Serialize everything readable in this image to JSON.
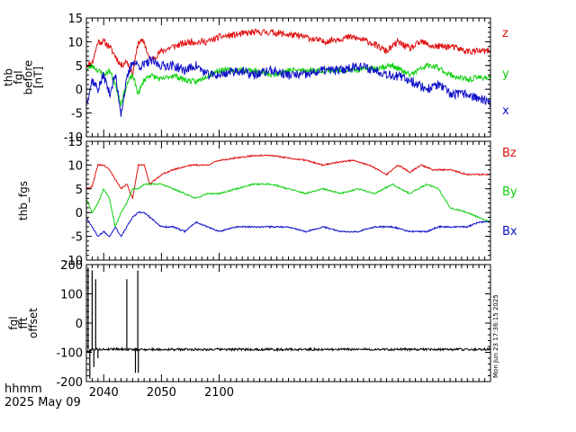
{
  "footer": {
    "time_format_label": "hhmm",
    "date_label": "2025 May 09",
    "stamp": "Mon Jun 23 17:36:15 2025"
  },
  "x_axis": {
    "range": [
      "20:37",
      "21:47"
    ],
    "ticks": [
      {
        "label": "2040",
        "value": "20:40"
      },
      {
        "label": "2050",
        "value": "20:50"
      },
      {
        "label": "2100",
        "value": "21:00"
      }
    ],
    "minor_tick_interval_minutes": 1
  },
  "colors": {
    "red": "#e01010",
    "green": "#10d010",
    "blue": "#1010c8",
    "black": "#000000",
    "background": "#ffffff"
  },
  "chart_data": [
    {
      "type": "line",
      "ylabel": [
        "thb",
        "fgl",
        "before",
        "[nT]"
      ],
      "ylim": [
        -10,
        15
      ],
      "yticks": [
        -10,
        -5,
        0,
        5,
        10,
        15
      ],
      "x_unit": "time (UT)",
      "series": [
        {
          "name": "z",
          "color": "red",
          "noise": 0.7,
          "seed": 11,
          "x": [
            "20:37",
            "20:38",
            "20:39",
            "20:40",
            "20:41",
            "20:42",
            "20:43",
            "20:44",
            "20:45",
            "20:46",
            "20:47",
            "20:48",
            "20:49",
            "20:50",
            "20:52",
            "20:55",
            "20:58",
            "21:00",
            "21:03",
            "21:06",
            "21:09",
            "21:12",
            "21:15",
            "21:18",
            "21:20",
            "21:23",
            "21:26",
            "21:29",
            "21:31",
            "21:33",
            "21:35",
            "21:37",
            "21:40",
            "21:43",
            "21:45",
            "21:47"
          ],
          "y": [
            5,
            5.5,
            10,
            10,
            9,
            7,
            5,
            6,
            3,
            10,
            10,
            6,
            7,
            8,
            9,
            10,
            10,
            11,
            11.5,
            12,
            12,
            11.5,
            11,
            10,
            10.5,
            11,
            10,
            8,
            10,
            8.5,
            10,
            9,
            9,
            8,
            8,
            8
          ]
        },
        {
          "name": "y",
          "color": "green",
          "noise": 0.6,
          "seed": 23,
          "x": [
            "20:37",
            "20:38",
            "20:39",
            "20:40",
            "20:41",
            "20:42",
            "20:43",
            "20:44",
            "20:45",
            "20:46",
            "20:47",
            "20:48",
            "20:50",
            "20:52",
            "20:54",
            "20:56",
            "20:58",
            "21:00",
            "21:03",
            "21:06",
            "21:09",
            "21:12",
            "21:15",
            "21:18",
            "21:21",
            "21:24",
            "21:27",
            "21:30",
            "21:33",
            "21:36",
            "21:38",
            "21:40",
            "21:43",
            "21:45",
            "21:47"
          ],
          "y": [
            4,
            5,
            4,
            3,
            4,
            1,
            -3,
            1,
            3,
            -1,
            2,
            3,
            2,
            3,
            2,
            1.5,
            3,
            4,
            4,
            4,
            3,
            4,
            4,
            4,
            4,
            4,
            4.5,
            5,
            3,
            5,
            4.5,
            3,
            2,
            2.5,
            2.5
          ]
        },
        {
          "name": "x",
          "color": "blue",
          "noise": 1.0,
          "seed": 37,
          "x": [
            "20:37",
            "20:38",
            "20:39",
            "20:40",
            "20:41",
            "20:42",
            "20:43",
            "20:44",
            "20:45",
            "20:46",
            "20:47",
            "20:48",
            "20:50",
            "20:52",
            "20:54",
            "20:56",
            "20:58",
            "21:00",
            "21:03",
            "21:06",
            "21:09",
            "21:12",
            "21:15",
            "21:18",
            "21:21",
            "21:24",
            "21:27",
            "21:30",
            "21:33",
            "21:36",
            "21:38",
            "21:40",
            "21:43",
            "21:45",
            "21:47"
          ],
          "y": [
            -3,
            2,
            0,
            3,
            -1,
            3,
            -5,
            2,
            6,
            5,
            5,
            6,
            5,
            5,
            4,
            5,
            3,
            3,
            4,
            3,
            4,
            3,
            3,
            4,
            4,
            5,
            4,
            3,
            2,
            0,
            1,
            -1,
            -1,
            -2,
            -3
          ]
        }
      ]
    },
    {
      "type": "line",
      "ylabel": [
        "thb_fgs"
      ],
      "ylim": [
        -10,
        15
      ],
      "yticks": [
        -10,
        -5,
        0,
        5,
        10,
        15
      ],
      "x_unit": "time (UT)",
      "series": [
        {
          "name": "Bz",
          "color": "red",
          "noise": 0.15,
          "seed": 41,
          "x": [
            "20:37",
            "20:38",
            "20:39",
            "20:40",
            "20:41",
            "20:42",
            "20:43",
            "20:44",
            "20:45",
            "20:46",
            "20:47",
            "20:48",
            "20:49",
            "20:50",
            "20:52",
            "20:55",
            "20:58",
            "21:00",
            "21:03",
            "21:06",
            "21:09",
            "21:12",
            "21:15",
            "21:18",
            "21:20",
            "21:23",
            "21:26",
            "21:29",
            "21:31",
            "21:33",
            "21:35",
            "21:37",
            "21:40",
            "21:43",
            "21:45",
            "21:47"
          ],
          "y": [
            5,
            5.5,
            10,
            10,
            9,
            7,
            5,
            6,
            3,
            10,
            10,
            6,
            7,
            8,
            9,
            10,
            10,
            11,
            11.5,
            12,
            12,
            11.5,
            11,
            10,
            10.5,
            11,
            10,
            8,
            10,
            8.5,
            10,
            9,
            9,
            8,
            8,
            8
          ]
        },
        {
          "name": "By",
          "color": "green",
          "noise": 0.15,
          "seed": 53,
          "x": [
            "20:37",
            "20:38",
            "20:39",
            "20:40",
            "20:41",
            "20:42",
            "20:43",
            "20:44",
            "20:45",
            "20:46",
            "20:47",
            "20:48",
            "20:50",
            "20:52",
            "20:54",
            "20:56",
            "20:58",
            "21:00",
            "21:03",
            "21:06",
            "21:09",
            "21:12",
            "21:15",
            "21:18",
            "21:21",
            "21:24",
            "21:27",
            "21:30",
            "21:33",
            "21:36",
            "21:38",
            "21:40",
            "21:43",
            "21:45",
            "21:47"
          ],
          "y": [
            3,
            0,
            2,
            5,
            3,
            -3,
            0,
            2,
            5,
            5,
            6,
            6,
            6,
            5,
            4,
            3,
            4,
            4,
            5,
            6,
            6,
            5,
            4,
            5,
            4,
            5,
            4,
            6,
            4,
            6,
            5,
            1,
            0,
            -1,
            -2
          ]
        },
        {
          "name": "Bx",
          "color": "blue",
          "noise": 0.15,
          "seed": 67,
          "x": [
            "20:37",
            "20:38",
            "20:39",
            "20:40",
            "20:41",
            "20:42",
            "20:43",
            "20:44",
            "20:45",
            "20:46",
            "20:47",
            "20:48",
            "20:50",
            "20:52",
            "20:54",
            "20:56",
            "20:58",
            "21:00",
            "21:03",
            "21:06",
            "21:09",
            "21:12",
            "21:15",
            "21:18",
            "21:21",
            "21:24",
            "21:27",
            "21:30",
            "21:33",
            "21:36",
            "21:38",
            "21:40",
            "21:43",
            "21:45",
            "21:47"
          ],
          "y": [
            -1,
            -3,
            -5,
            -4,
            -5,
            -3,
            -5,
            -3,
            -1,
            0,
            0,
            -1,
            -3,
            -3,
            -4,
            -2,
            -3,
            -4,
            -3,
            -3,
            -3,
            -3,
            -4,
            -3,
            -4,
            -4,
            -3,
            -3,
            -4,
            -4,
            -3,
            -3,
            -3,
            -2,
            -2
          ]
        }
      ]
    },
    {
      "type": "line",
      "ylabel": [
        "fgl",
        "fft",
        "offset"
      ],
      "ylim": [
        -200,
        200
      ],
      "yticks": [
        -200,
        -100,
        0,
        100,
        200
      ],
      "x_unit": "time (UT)",
      "series": [
        {
          "name": "",
          "color": "black",
          "noise": 4,
          "seed": 79,
          "x": [
            "20:37",
            "20:38",
            "20:39",
            "20:40",
            "20:42",
            "20:44",
            "20:46",
            "20:48",
            "20:50",
            "21:00",
            "21:10",
            "21:20",
            "21:30",
            "21:40",
            "21:47"
          ],
          "y": [
            -100,
            -90,
            -90,
            -90,
            -88,
            -90,
            -90,
            -90,
            -90,
            -90,
            -90,
            -90,
            -90,
            -90,
            -90
          ]
        },
        {
          "name": "",
          "color": "black",
          "type": "spikes",
          "x": [
            "20:37.3",
            "20:37.6",
            "20:38.0",
            "20:38.3",
            "20:38.6",
            "20:39.0",
            "20:44.0",
            "20:45.5",
            "20:45.9",
            "20:46.0"
          ],
          "y": [
            190,
            -190,
            180,
            -150,
            150,
            -120,
            150,
            -170,
            180,
            -170
          ]
        }
      ]
    }
  ]
}
